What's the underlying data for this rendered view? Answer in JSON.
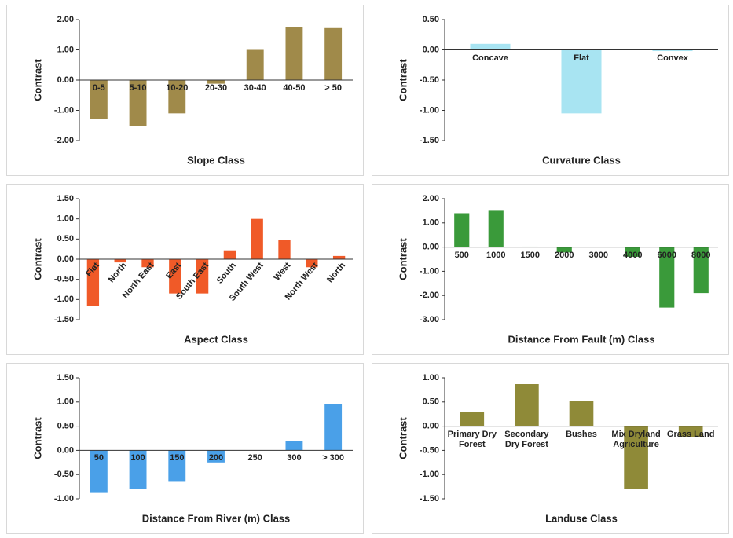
{
  "chart_data": [
    {
      "type": "bar",
      "xlabel": "Slope Class",
      "ylabel": "Contrast",
      "color": "#a08a4a",
      "categories": [
        "0-5",
        "5-10",
        "10-20",
        "20-30",
        "30-40",
        "40-50",
        "> 50"
      ],
      "values": [
        -1.28,
        -1.52,
        -1.1,
        -0.12,
        1.0,
        1.75,
        1.72
      ],
      "ylim": [
        -2,
        2
      ],
      "yticks": [
        {
          "value": 2,
          "label": "2.00"
        },
        {
          "value": 1,
          "label": "1.00"
        },
        {
          "value": 0,
          "label": "0.00"
        },
        {
          "value": -1,
          "label": "-1.00"
        },
        {
          "value": -2,
          "label": "-2.00"
        }
      ]
    },
    {
      "type": "bar",
      "xlabel": "Curvature Class",
      "ylabel": "Contrast",
      "color": "#a8e4f2",
      "categories": [
        "Concave",
        "Flat",
        "Convex"
      ],
      "values": [
        0.1,
        -1.05,
        -0.02
      ],
      "ylim": [
        -1.5,
        0.5
      ],
      "yticks": [
        {
          "value": 0.5,
          "label": "0.50"
        },
        {
          "value": 0,
          "label": "0.00"
        },
        {
          "value": -0.5,
          "label": "-0.50"
        },
        {
          "value": -1,
          "label": "-1.00"
        },
        {
          "value": -1.5,
          "label": "-1.50"
        }
      ]
    },
    {
      "type": "bar",
      "xlabel": "Aspect Class",
      "ylabel": "Contrast",
      "color": "#f05a28",
      "categories": [
        "Flat",
        "North",
        "North East",
        "East",
        "South East",
        "South",
        "South West",
        "West",
        "North West",
        "North"
      ],
      "values": [
        -1.15,
        -0.08,
        -0.2,
        -0.85,
        -0.85,
        0.22,
        1.0,
        0.48,
        -0.2,
        0.08
      ],
      "ylim": [
        -1.5,
        1.5
      ],
      "yticks": [
        {
          "value": 1.5,
          "label": "1.50"
        },
        {
          "value": 1,
          "label": "1.00"
        },
        {
          "value": 0.5,
          "label": "0.50"
        },
        {
          "value": 0,
          "label": "0.00"
        },
        {
          "value": -0.5,
          "label": "-0.50"
        },
        {
          "value": -1,
          "label": "-1.00"
        },
        {
          "value": -1.5,
          "label": "-1.50"
        }
      ]
    },
    {
      "type": "bar",
      "xlabel": "Distance From Fault (m) Class",
      "ylabel": "Contrast",
      "color": "#3a9a3a",
      "categories": [
        "500",
        "1000",
        "1500",
        "2000",
        "3000",
        "4000",
        "6000",
        "8000"
      ],
      "values": [
        1.4,
        1.5,
        0.02,
        -0.22,
        0,
        -0.4,
        -2.5,
        -1.9
      ],
      "ylim": [
        -3,
        2
      ],
      "yticks": [
        {
          "value": 2,
          "label": "2.00"
        },
        {
          "value": 1,
          "label": "1.00"
        },
        {
          "value": 0,
          "label": "0.00"
        },
        {
          "value": -1,
          "label": "-1.00"
        },
        {
          "value": -2,
          "label": "-2.00"
        },
        {
          "value": -3,
          "label": "-3.00"
        }
      ]
    },
    {
      "type": "bar",
      "xlabel": "Distance From River (m) Class",
      "ylabel": "Contrast",
      "color": "#4aa0e8",
      "categories": [
        "50",
        "100",
        "150",
        "200",
        "250",
        "300",
        "> 300"
      ],
      "values": [
        -0.88,
        -0.8,
        -0.65,
        -0.25,
        0,
        0.2,
        0.95
      ],
      "ylim": [
        -1,
        1.5
      ],
      "yticks": [
        {
          "value": 1.5,
          "label": "1.50"
        },
        {
          "value": 1,
          "label": "1.00"
        },
        {
          "value": 0.5,
          "label": "0.50"
        },
        {
          "value": 0,
          "label": "0.00"
        },
        {
          "value": -0.5,
          "label": "-0.50"
        },
        {
          "value": -1,
          "label": "-1.00"
        }
      ]
    },
    {
      "type": "bar",
      "xlabel": "Landuse Class",
      "ylabel": "Contrast",
      "color": "#8f8a38",
      "categories": [
        "Primary Dry Forest",
        "Secondary Dry Forest",
        "Bushes",
        "Mix Dryland Agriculture",
        "Grass Land"
      ],
      "values": [
        0.3,
        0.87,
        0.52,
        -1.3,
        -0.22
      ],
      "ylim": [
        -1.5,
        1
      ],
      "yticks": [
        {
          "value": 1,
          "label": "1.00"
        },
        {
          "value": 0.5,
          "label": "0.50"
        },
        {
          "value": 0,
          "label": "0.00"
        },
        {
          "value": -0.5,
          "label": "-0.50"
        },
        {
          "value": -1,
          "label": "-1.00"
        },
        {
          "value": -1.5,
          "label": "-1.50"
        }
      ]
    }
  ]
}
